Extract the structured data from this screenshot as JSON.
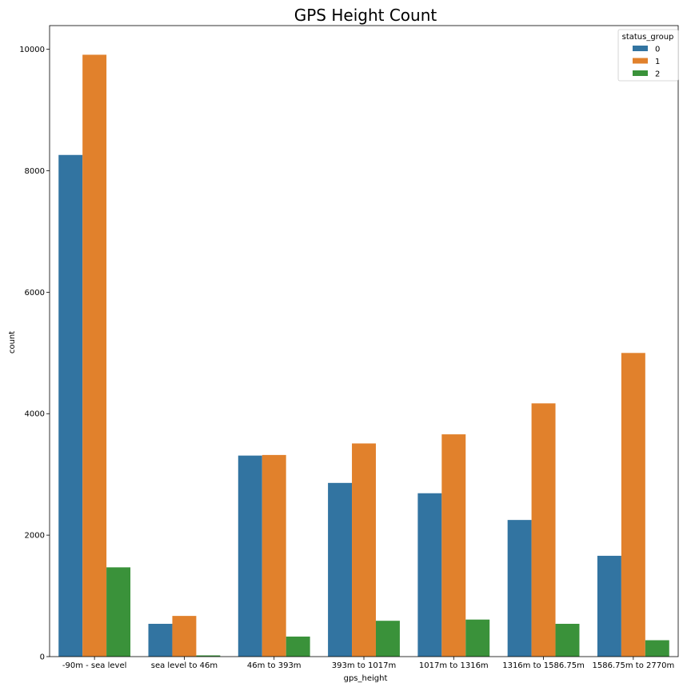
{
  "chart_data": {
    "type": "bar",
    "title": "GPS Height Count",
    "xlabel": "gps_height",
    "ylabel": "count",
    "categories": [
      "-90m - sea level",
      "sea level to 46m",
      "46m to 393m",
      "393m to 1017m",
      "1017m to 1316m",
      "1316m to 1586.75m",
      "1586.75m to 2770m"
    ],
    "ylim": [
      0,
      10390
    ],
    "yticks": [
      0,
      2000,
      4000,
      6000,
      8000,
      10000
    ],
    "grid": false,
    "legend": {
      "title": "status_group",
      "position": "top-right"
    },
    "series": [
      {
        "name": "0",
        "color": "#3274a1",
        "values": [
          8260,
          540,
          3310,
          2860,
          2690,
          2250,
          1660
        ]
      },
      {
        "name": "1",
        "color": "#e1812c",
        "values": [
          9910,
          670,
          3320,
          3510,
          3660,
          4170,
          5000
        ]
      },
      {
        "name": "2",
        "color": "#3a923a",
        "values": [
          1470,
          20,
          330,
          590,
          610,
          540,
          270
        ]
      }
    ]
  }
}
